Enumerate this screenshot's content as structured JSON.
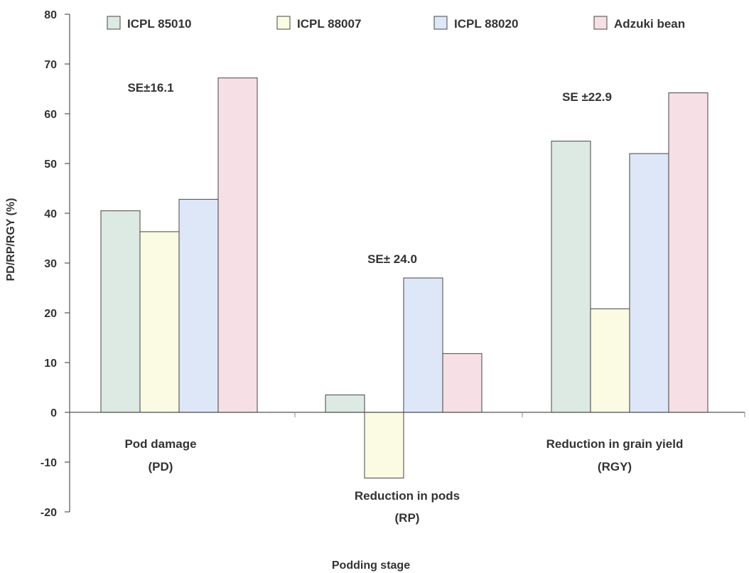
{
  "chart_data": {
    "type": "bar",
    "title": "",
    "xlabel": "Podding stage",
    "ylabel": "PD/RP/RGY (%)",
    "ylim": [
      -20,
      80
    ],
    "yticks": [
      -20,
      -10,
      0,
      10,
      20,
      30,
      40,
      50,
      60,
      70,
      80
    ],
    "ytick_labels": [
      "-20",
      "-10",
      "0",
      "10",
      "20",
      "30",
      "40",
      "50",
      "60",
      "70",
      "80"
    ],
    "grid": false,
    "legend_position": "top",
    "categories": [
      {
        "line1": "Pod damage",
        "line2": "(PD)"
      },
      {
        "line1": "Reduction in pods",
        "line2": "(RP)"
      },
      {
        "line1": "Reduction in grain yield",
        "line2": "(RGY)"
      }
    ],
    "series": [
      {
        "name": "ICPL 85010",
        "color": "#dde9e3",
        "values": [
          40.5,
          3.5,
          54.5
        ]
      },
      {
        "name": "ICPL 88007",
        "color": "#fbfbe4",
        "values": [
          36.3,
          -13.2,
          20.8
        ]
      },
      {
        "name": "ICPL 88020",
        "color": "#dde7f7",
        "values": [
          42.8,
          27.0,
          52.0
        ]
      },
      {
        "name": "Adzuki bean",
        "color": "#f7dfe6",
        "values": [
          67.2,
          11.8,
          64.2
        ]
      }
    ],
    "annotations": [
      "SE±16.1",
      "SE± 24.0",
      "SE ±22.9"
    ]
  }
}
